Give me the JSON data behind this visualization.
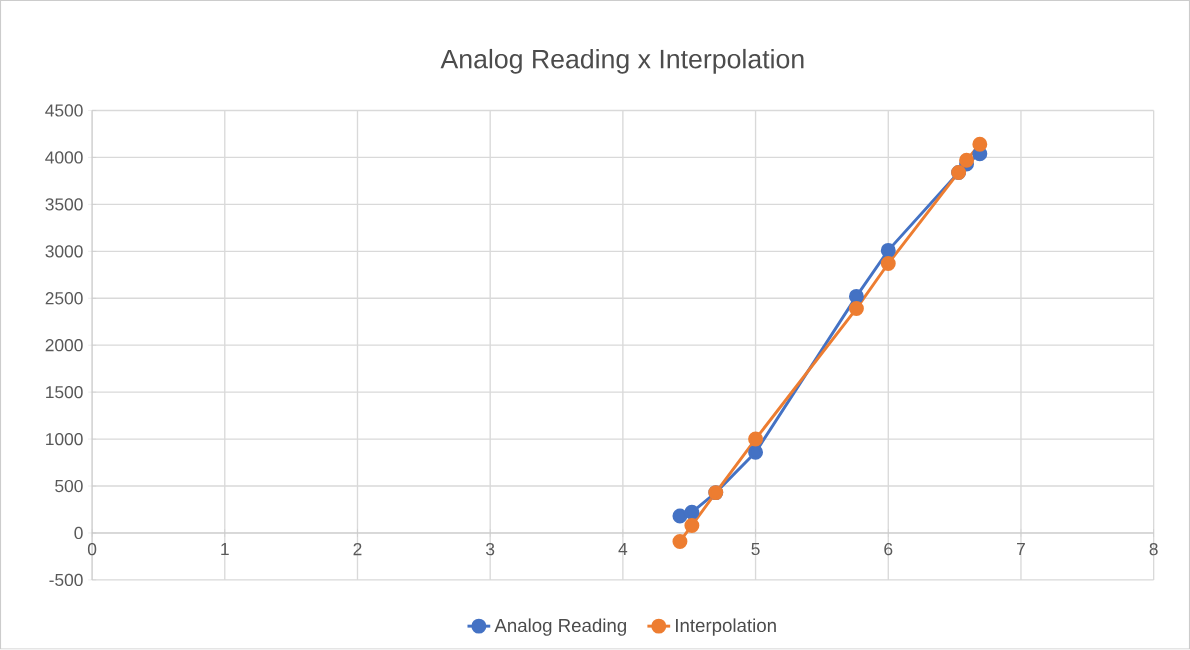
{
  "chart_data": {
    "type": "line",
    "title": "Analog Reading x Interpolation",
    "marker": "circle",
    "grid": true,
    "legend": "bottom",
    "xlim": [
      0,
      8
    ],
    "xticks": [
      0,
      1,
      2,
      3,
      4,
      5,
      6,
      7,
      8
    ],
    "ylim": [
      -500,
      4500
    ],
    "yticks": [
      -500,
      0,
      500,
      1000,
      1500,
      2000,
      2500,
      3000,
      3500,
      4000,
      4500
    ],
    "series": [
      {
        "name": "Analog Reading",
        "color": "#4472c4",
        "x": [
          4.43,
          4.52,
          4.7,
          5.0,
          5.76,
          6.0,
          6.53,
          6.59,
          6.69
        ],
        "values": [
          180,
          220,
          430,
          860,
          2520,
          3010,
          3840,
          3930,
          4040
        ]
      },
      {
        "name": "Interpolation",
        "color": "#ed7d31",
        "x": [
          4.43,
          4.52,
          4.7,
          5.0,
          5.76,
          6.0,
          6.53,
          6.59,
          6.69
        ],
        "values": [
          -90,
          80,
          430,
          1000,
          2390,
          2870,
          3840,
          3970,
          4140
        ]
      }
    ]
  }
}
